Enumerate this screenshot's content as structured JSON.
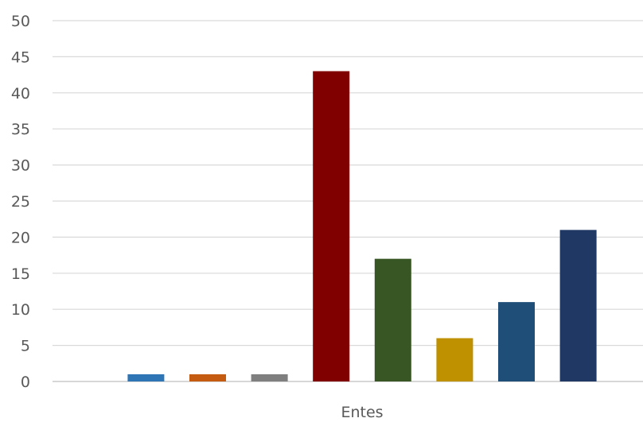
{
  "chart_data": {
    "type": "bar",
    "title": "",
    "xlabel": "",
    "ylabel": "",
    "categories": [
      "Entes"
    ],
    "ylim": [
      0,
      50
    ],
    "yticks": [
      0,
      5,
      10,
      15,
      20,
      25,
      30,
      35,
      40,
      45,
      50
    ],
    "grid": true,
    "series": [
      {
        "values": [
          1
        ],
        "color": "#2E75B6"
      },
      {
        "values": [
          1
        ],
        "color": "#C55A11"
      },
      {
        "values": [
          1
        ],
        "color": "#7F7F7F"
      },
      {
        "values": [
          43
        ],
        "color": "#800000"
      },
      {
        "values": [
          17
        ],
        "color": "#375623"
      },
      {
        "values": [
          6
        ],
        "color": "#BF9000"
      },
      {
        "values": [
          11
        ],
        "color": "#1F4E79"
      },
      {
        "values": [
          21
        ],
        "color": "#203864"
      }
    ]
  }
}
